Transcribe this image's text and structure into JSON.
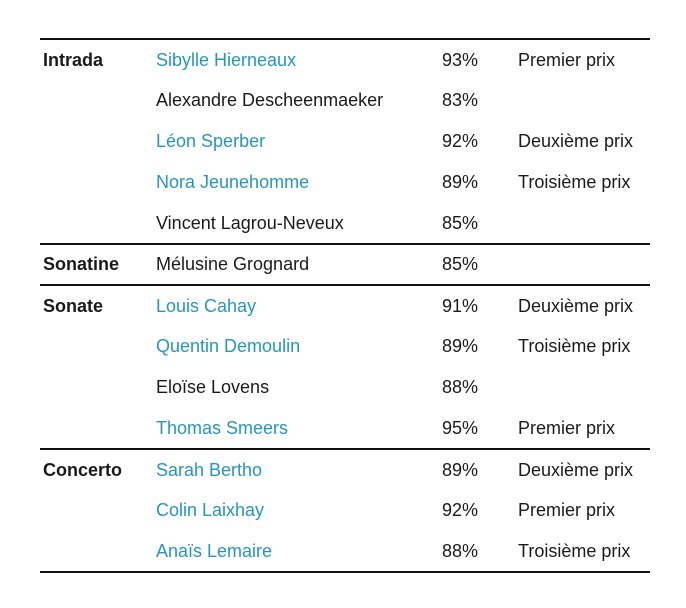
{
  "colors": {
    "accent": "#2596be",
    "text": "#1a1a1a",
    "border": "#111111",
    "background": "#ffffff"
  },
  "sections": [
    {
      "category": "Intrada",
      "rows": [
        {
          "name": "Sibylle Hierneaux",
          "score": "93%",
          "prize": "Premier prix",
          "link": true
        },
        {
          "name": "Alexandre Descheenmaeker",
          "score": "83%",
          "prize": "",
          "link": false
        },
        {
          "name": "Léon Sperber",
          "score": "92%",
          "prize": "Deuxième prix",
          "link": true
        },
        {
          "name": "Nora Jeunehomme",
          "score": "89%",
          "prize": "Troisième prix",
          "link": true
        },
        {
          "name": "Vincent Lagrou-Neveux",
          "score": "85%",
          "prize": "",
          "link": false
        }
      ]
    },
    {
      "category": "Sonatine",
      "rows": [
        {
          "name": "Mélusine Grognard",
          "score": "85%",
          "prize": "",
          "link": false
        }
      ]
    },
    {
      "category": "Sonate",
      "rows": [
        {
          "name": "Louis Cahay",
          "score": "91%",
          "prize": "Deuxième prix",
          "link": true
        },
        {
          "name": "Quentin Demoulin",
          "score": "89%",
          "prize": "Troisième prix",
          "link": true
        },
        {
          "name": "Eloïse Lovens",
          "score": "88%",
          "prize": "",
          "link": false
        },
        {
          "name": "Thomas Smeers",
          "score": "95%",
          "prize": "Premier prix",
          "link": true
        }
      ]
    },
    {
      "category": "Concerto",
      "rows": [
        {
          "name": "Sarah Bertho",
          "score": "89%",
          "prize": "Deuxième prix",
          "link": true
        },
        {
          "name": "Colin Laixhay",
          "score": "92%",
          "prize": "Premier prix",
          "link": true
        },
        {
          "name": "Anaïs Lemaire",
          "score": "88%",
          "prize": "Troisième prix",
          "link": true
        }
      ]
    }
  ],
  "chart_data": {
    "type": "table",
    "rows": [
      [
        "Intrada",
        "Sibylle Hierneaux",
        "93%",
        "Premier prix"
      ],
      [
        "",
        "Alexandre Descheenmaeker",
        "83%",
        ""
      ],
      [
        "",
        "Léon Sperber",
        "92%",
        "Deuxième prix"
      ],
      [
        "",
        "Nora Jeunehomme",
        "89%",
        "Troisième prix"
      ],
      [
        "",
        "Vincent Lagrou-Neveux",
        "85%",
        ""
      ],
      [
        "Sonatine",
        "Mélusine Grognard",
        "85%",
        ""
      ],
      [
        "Sonate",
        "Louis Cahay",
        "91%",
        "Deuxième prix"
      ],
      [
        "",
        "Quentin Demoulin",
        "89%",
        "Troisième prix"
      ],
      [
        "",
        "Eloïse Lovens",
        "88%",
        ""
      ],
      [
        "",
        "Thomas Smeers",
        "95%",
        "Premier prix"
      ],
      [
        "Concerto",
        "Sarah Bertho",
        "89%",
        "Deuxième prix"
      ],
      [
        "",
        "Colin Laixhay",
        "92%",
        "Premier prix"
      ],
      [
        "",
        "Anaïs Lemaire",
        "88%",
        "Troisième prix"
      ]
    ],
    "layout_hints": {
      "grid": "horizontal rules between category sections only",
      "highlighted_cells": "linked candidate names rendered in accent color"
    }
  }
}
